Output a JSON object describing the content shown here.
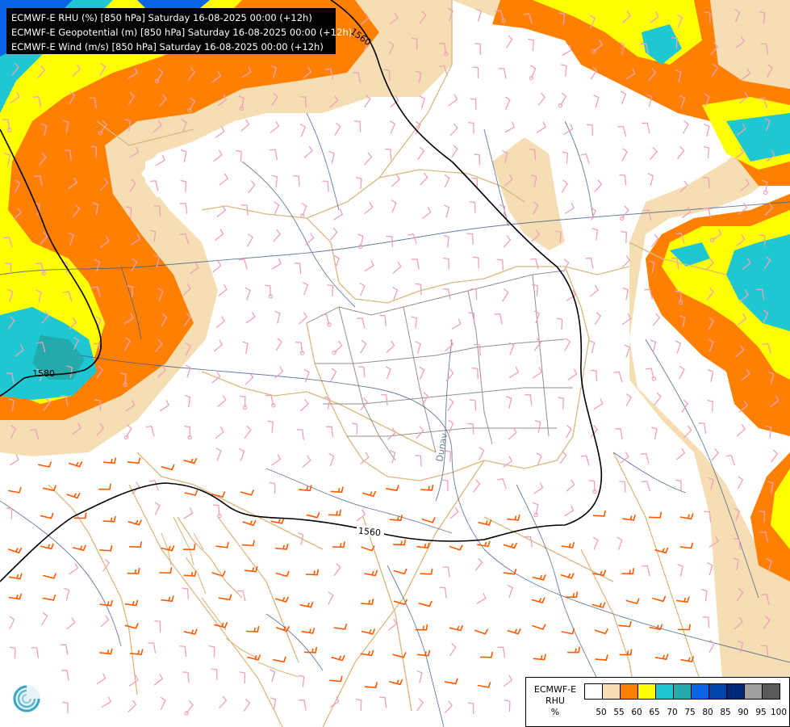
{
  "titles": [
    "ECMWF-E RHU (%) [850 hPa] Saturday 16-08-2025 00:00 (+12h)",
    "ECMWF-E Geopotential (m) [850 hPa] Saturday 16-08-2025 00:00 (+12h)",
    "ECMWF-E Wind (m/s) [850 hPa] Saturday 16-08-2025 00:00 (+12h)"
  ],
  "contour_labels": [
    "1560",
    "1580",
    "1560"
  ],
  "river_label": "Dunav",
  "legend": {
    "model": "ECMWF-E",
    "field": "RHU",
    "unit": "%",
    "ticks": [
      "50",
      "55",
      "60",
      "65",
      "70",
      "75",
      "80",
      "85",
      "90",
      "95",
      "100"
    ],
    "colors": [
      "#ffffff",
      "#f5deb3",
      "#ff8000",
      "#ffff00",
      "#1ec8d2",
      "#23aaaa",
      "#0a64e6",
      "#0046aa",
      "#002878",
      "#a0a0a0",
      "#5a5a5a"
    ]
  },
  "colors": {
    "border": "#d8b87f",
    "river": "#40588a",
    "barb_normal": "#f0a0b8",
    "barb_strong": "#ff5a00",
    "contour": "#000000"
  }
}
